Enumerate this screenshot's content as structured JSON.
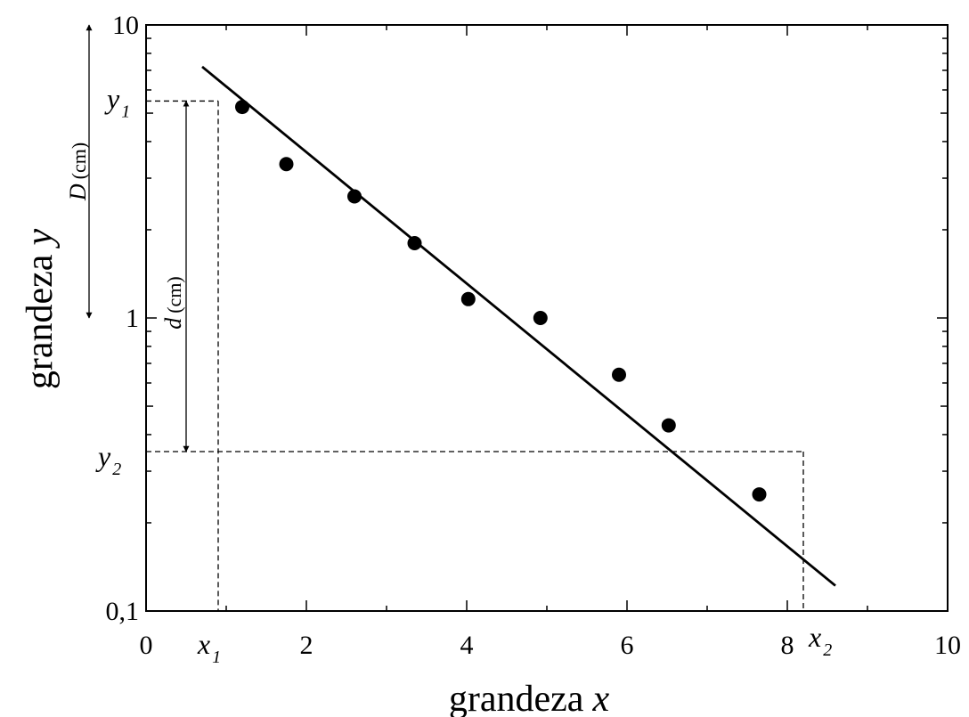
{
  "chart_data": {
    "type": "scatter",
    "x": [
      1.2,
      1.75,
      2.6,
      3.35,
      4.02,
      4.92,
      5.9,
      6.52,
      7.65
    ],
    "y": [
      5.25,
      3.35,
      2.6,
      1.8,
      1.16,
      1.0,
      0.64,
      0.43,
      0.25
    ],
    "fit_line": {
      "x": [
        0.7,
        8.6
      ],
      "y": [
        7.2,
        0.122
      ]
    },
    "xlabel_word": "grandeza",
    "xlabel_var": "x",
    "ylabel_word": "grandeza",
    "ylabel_var": "y",
    "xlim": [
      0,
      10
    ],
    "ylim": [
      0.1,
      10
    ],
    "yscale": "log",
    "x_ticks": [
      "0",
      "2",
      "4",
      "6",
      "8",
      "10"
    ],
    "x_tick_values": [
      0,
      2,
      4,
      6,
      8,
      10
    ],
    "y_ticks": [
      "0,1",
      "1",
      "10"
    ],
    "y_tick_values": [
      0.1,
      1,
      10
    ],
    "markers": {
      "x1": {
        "main": "x",
        "sub": "1",
        "value": 0.9
      },
      "x2": {
        "main": "x",
        "sub": "2",
        "value": 8.2
      },
      "y1": {
        "main": "y",
        "sub": "1",
        "value": 5.5
      },
      "y2": {
        "main": "y",
        "sub": "2",
        "value": 0.35
      }
    },
    "dimension_D": {
      "var": "D",
      "unit": "(cm)",
      "from": 10,
      "to": 1
    },
    "dimension_d": {
      "var": "d",
      "unit": "(cm)",
      "from": 5.5,
      "to": 0.35
    },
    "grid": false,
    "legend": "none"
  }
}
